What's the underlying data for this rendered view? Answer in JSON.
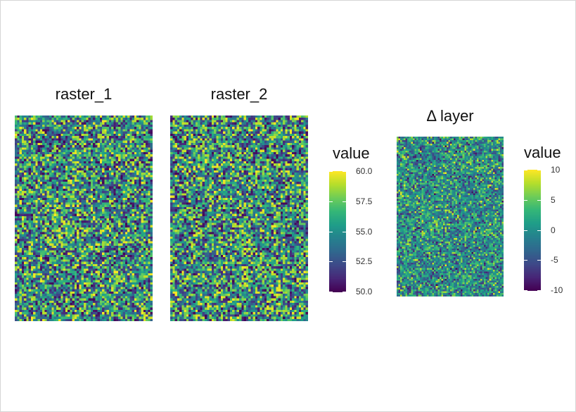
{
  "chart_data": [
    {
      "type": "heatmap",
      "title": "raster_1",
      "value_range": [
        50,
        60
      ],
      "distribution": "uniform random",
      "grid_cols": 60,
      "grid_rows": 90,
      "colormap": "viridis"
    },
    {
      "type": "heatmap",
      "title": "raster_2",
      "value_range": [
        50,
        60
      ],
      "distribution": "uniform random",
      "grid_cols": 60,
      "grid_rows": 90,
      "colormap": "viridis"
    },
    {
      "type": "heatmap",
      "title": "Δ layer",
      "value_range": [
        -10,
        10
      ],
      "distribution": "difference raster_1 - raster_2",
      "grid_cols": 60,
      "grid_rows": 90,
      "colormap": "viridis"
    }
  ],
  "legends": [
    {
      "title": "value",
      "ticks": [
        {
          "label": "60.0",
          "value": 60
        },
        {
          "label": "57.5",
          "value": 57.5
        },
        {
          "label": "55.0",
          "value": 55
        },
        {
          "label": "52.5",
          "value": 52.5
        },
        {
          "label": "50.0",
          "value": 50
        }
      ],
      "range": [
        50,
        60
      ]
    },
    {
      "title": "value",
      "ticks": [
        {
          "label": "10",
          "value": 10
        },
        {
          "label": "5",
          "value": 5
        },
        {
          "label": "0",
          "value": 0
        },
        {
          "label": "-5",
          "value": -5
        },
        {
          "label": "-10",
          "value": -10
        }
      ],
      "range": [
        -10,
        10
      ]
    }
  ],
  "colors": {
    "viridis_low": "#440154",
    "viridis_mid": "#21918c",
    "viridis_high": "#fde725"
  }
}
